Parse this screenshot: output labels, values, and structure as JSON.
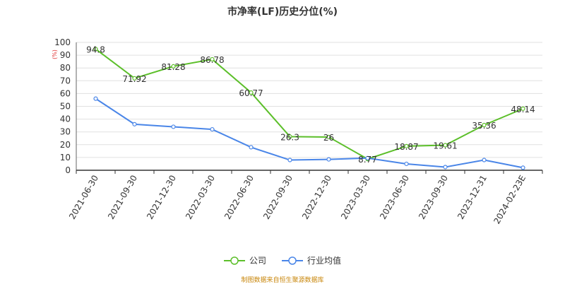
{
  "chart_data": {
    "type": "line",
    "title": "市净率(LF)历史分位(%)",
    "ylabel": "(%)",
    "ylim": [
      0,
      100
    ],
    "yticks": [
      0,
      10,
      20,
      30,
      40,
      50,
      60,
      70,
      80,
      90,
      100
    ],
    "categories": [
      "2021-06-30",
      "2021-09-30",
      "2021-12-30",
      "2022-03-30",
      "2022-06-30",
      "2022-09-30",
      "2022-12-30",
      "2023-03-30",
      "2023-06-30",
      "2023-09-30",
      "2023-12-31",
      "2024-02-23E"
    ],
    "series": [
      {
        "name": "公司",
        "color": "#5cbf2a",
        "values": [
          94.8,
          71.92,
          81.28,
          86.78,
          60.77,
          26.3,
          26,
          8.77,
          18.87,
          19.61,
          35.36,
          48.14
        ],
        "labels": [
          "94.8",
          "71.92",
          "81.28",
          "86.78",
          "60.77",
          "26.3",
          "26",
          "8.77",
          "18.87",
          "19.61",
          "35.36",
          "48.14"
        ]
      },
      {
        "name": "行业均值",
        "color": "#4a86e8",
        "values": [
          56,
          36,
          34,
          32,
          18,
          8,
          8.5,
          9.5,
          5,
          2.5,
          8,
          2
        ]
      }
    ],
    "grid": true,
    "legend_position": "bottom"
  },
  "source_note": "制图数据来自恒生聚源数据库"
}
